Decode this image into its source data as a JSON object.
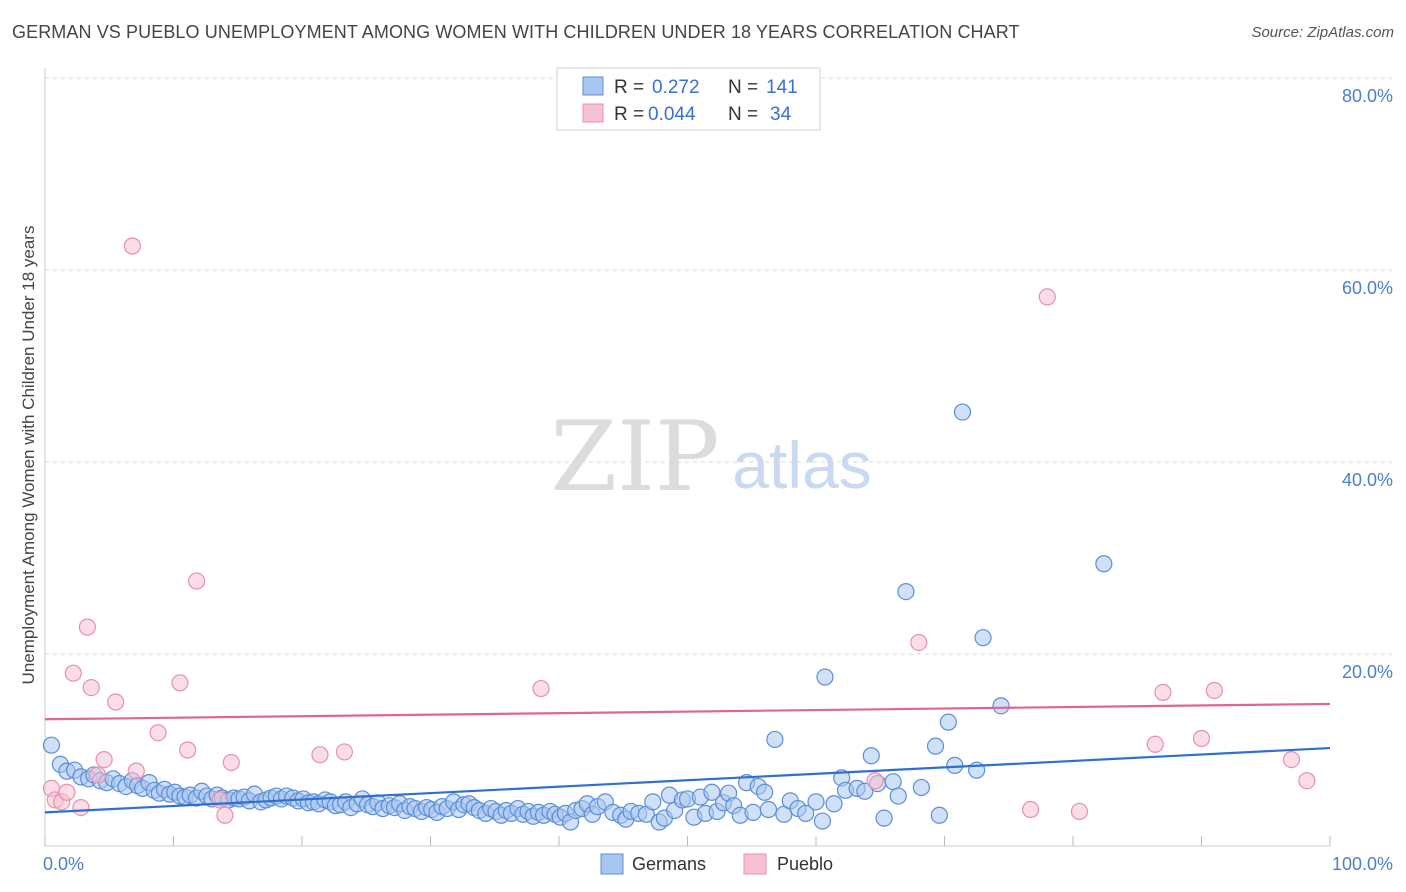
{
  "title": "GERMAN VS PUEBLO UNEMPLOYMENT AMONG WOMEN WITH CHILDREN UNDER 18 YEARS CORRELATION CHART",
  "source": "Source: ZipAtlas.com",
  "watermark": {
    "zip": "ZIP",
    "atlas": "atlas"
  },
  "colors": {
    "germans_fill": "#a9c6f1",
    "germans_stroke": "#5b8ed8",
    "germans_line": "#2f6fd0",
    "pueblo_fill": "#f6c1d1",
    "pueblo_stroke": "#e890ab",
    "pueblo_line": "#e06690",
    "grid": "#d8d8d8",
    "tick_text": "#4a7fcf"
  },
  "legend": {
    "rows": [
      {
        "series": "germans",
        "r_label": "R =",
        "r_value": "0.272",
        "n_label": "N =",
        "n_value": "141"
      },
      {
        "series": "pueblo",
        "r_label": "R =",
        "r_value": "0.044",
        "n_label": "N =",
        "n_value": "34"
      }
    ]
  },
  "chart_data": {
    "type": "scatter",
    "title": "GERMAN VS PUEBLO UNEMPLOYMENT AMONG WOMEN WITH CHILDREN UNDER 18 YEARS CORRELATION CHART",
    "xlabel": "",
    "ylabel": "Unemployment Among Women with Children Under 18 years",
    "xlim": [
      0,
      100
    ],
    "ylim": [
      0,
      80
    ],
    "x_tick_labels": [
      {
        "value": 0,
        "label": "0.0%"
      },
      {
        "value": 100,
        "label": "100.0%"
      }
    ],
    "y_tick_labels": [
      {
        "value": 20,
        "label": "20.0%"
      },
      {
        "value": 40,
        "label": "40.0%"
      },
      {
        "value": 60,
        "label": "60.0%"
      },
      {
        "value": 80,
        "label": "80.0%"
      }
    ],
    "grid": true,
    "legend_position": "top-center",
    "series": [
      {
        "name": "Germans",
        "key": "germans",
        "trend": {
          "x": [
            0,
            100
          ],
          "y": [
            3.5,
            10.2
          ]
        },
        "points": [
          [
            0.5,
            10.5
          ],
          [
            1.2,
            8.5
          ],
          [
            1.7,
            7.8
          ],
          [
            2.3,
            7.9
          ],
          [
            2.8,
            7.2
          ],
          [
            3.4,
            7.0
          ],
          [
            3.8,
            7.4
          ],
          [
            4.3,
            6.8
          ],
          [
            4.8,
            6.6
          ],
          [
            5.3,
            7.0
          ],
          [
            5.8,
            6.5
          ],
          [
            6.3,
            6.2
          ],
          [
            6.8,
            6.8
          ],
          [
            7.2,
            6.3
          ],
          [
            7.6,
            6.0
          ],
          [
            8.1,
            6.6
          ],
          [
            8.5,
            5.8
          ],
          [
            8.9,
            5.5
          ],
          [
            9.3,
            5.9
          ],
          [
            9.7,
            5.4
          ],
          [
            10.1,
            5.6
          ],
          [
            10.5,
            5.2
          ],
          [
            10.9,
            5.1
          ],
          [
            11.3,
            5.3
          ],
          [
            11.8,
            5.0
          ],
          [
            12.2,
            5.7
          ],
          [
            12.6,
            5.2
          ],
          [
            13.0,
            4.9
          ],
          [
            13.4,
            5.3
          ],
          [
            13.8,
            5.0
          ],
          [
            14.3,
            4.8
          ],
          [
            14.7,
            5.0
          ],
          [
            15.1,
            4.9
          ],
          [
            15.5,
            5.1
          ],
          [
            15.9,
            4.7
          ],
          [
            16.3,
            5.4
          ],
          [
            16.8,
            4.6
          ],
          [
            17.2,
            4.8
          ],
          [
            17.6,
            5.0
          ],
          [
            18.0,
            5.2
          ],
          [
            18.4,
            4.9
          ],
          [
            18.8,
            5.2
          ],
          [
            19.3,
            5.0
          ],
          [
            19.7,
            4.7
          ],
          [
            20.1,
            4.9
          ],
          [
            20.5,
            4.5
          ],
          [
            20.9,
            4.6
          ],
          [
            21.3,
            4.4
          ],
          [
            21.8,
            4.8
          ],
          [
            22.2,
            4.6
          ],
          [
            22.6,
            4.2
          ],
          [
            23.0,
            4.3
          ],
          [
            23.4,
            4.6
          ],
          [
            23.8,
            4.0
          ],
          [
            24.3,
            4.4
          ],
          [
            24.7,
            4.9
          ],
          [
            25.1,
            4.3
          ],
          [
            25.5,
            4.1
          ],
          [
            25.9,
            4.5
          ],
          [
            26.3,
            3.9
          ],
          [
            26.8,
            4.2
          ],
          [
            27.2,
            4.0
          ],
          [
            27.6,
            4.4
          ],
          [
            28.0,
            3.7
          ],
          [
            28.4,
            4.1
          ],
          [
            28.8,
            3.9
          ],
          [
            29.3,
            3.6
          ],
          [
            29.7,
            4.0
          ],
          [
            30.1,
            3.8
          ],
          [
            30.5,
            3.5
          ],
          [
            30.9,
            4.1
          ],
          [
            31.3,
            3.9
          ],
          [
            31.8,
            4.6
          ],
          [
            32.2,
            3.8
          ],
          [
            32.6,
            4.3
          ],
          [
            33.0,
            4.4
          ],
          [
            33.4,
            4.0
          ],
          [
            33.8,
            3.7
          ],
          [
            34.3,
            3.4
          ],
          [
            34.7,
            3.9
          ],
          [
            35.1,
            3.6
          ],
          [
            35.5,
            3.2
          ],
          [
            35.9,
            3.7
          ],
          [
            36.3,
            3.4
          ],
          [
            36.8,
            3.9
          ],
          [
            37.2,
            3.3
          ],
          [
            37.6,
            3.6
          ],
          [
            38.0,
            3.1
          ],
          [
            38.4,
            3.5
          ],
          [
            38.8,
            3.2
          ],
          [
            39.3,
            3.6
          ],
          [
            39.7,
            3.3
          ],
          [
            40.1,
            3.0
          ],
          [
            40.5,
            3.4
          ],
          [
            40.9,
            2.5
          ],
          [
            41.3,
            3.7
          ],
          [
            41.8,
            3.9
          ],
          [
            42.2,
            4.4
          ],
          [
            42.6,
            3.3
          ],
          [
            43.0,
            4.1
          ],
          [
            43.6,
            4.6
          ],
          [
            44.2,
            3.5
          ],
          [
            44.8,
            3.2
          ],
          [
            45.2,
            2.8
          ],
          [
            45.6,
            3.6
          ],
          [
            46.2,
            3.4
          ],
          [
            46.8,
            3.3
          ],
          [
            47.3,
            4.6
          ],
          [
            47.8,
            2.5
          ],
          [
            48.2,
            2.9
          ],
          [
            48.6,
            5.3
          ],
          [
            49.0,
            3.7
          ],
          [
            49.6,
            4.8
          ],
          [
            50.0,
            4.9
          ],
          [
            50.5,
            3.0
          ],
          [
            51.0,
            5.1
          ],
          [
            51.4,
            3.4
          ],
          [
            51.9,
            5.6
          ],
          [
            52.3,
            3.6
          ],
          [
            52.8,
            4.5
          ],
          [
            53.2,
            5.5
          ],
          [
            53.6,
            4.2
          ],
          [
            54.1,
            3.2
          ],
          [
            54.6,
            6.6
          ],
          [
            55.1,
            3.5
          ],
          [
            55.5,
            6.2
          ],
          [
            56.0,
            5.6
          ],
          [
            56.3,
            3.8
          ],
          [
            56.8,
            11.1
          ],
          [
            57.5,
            3.3
          ],
          [
            58.0,
            4.7
          ],
          [
            58.6,
            3.9
          ],
          [
            59.2,
            3.4
          ],
          [
            60.0,
            4.6
          ],
          [
            60.5,
            2.6
          ],
          [
            60.7,
            17.6
          ],
          [
            61.4,
            4.4
          ],
          [
            62.0,
            7.1
          ],
          [
            62.3,
            5.8
          ],
          [
            63.2,
            6.0
          ],
          [
            63.8,
            5.7
          ],
          [
            64.3,
            9.4
          ],
          [
            64.8,
            6.5
          ],
          [
            65.3,
            2.9
          ],
          [
            66.0,
            6.7
          ],
          [
            66.4,
            5.2
          ],
          [
            67.0,
            26.5
          ],
          [
            68.2,
            6.1
          ],
          [
            69.3,
            10.4
          ],
          [
            69.6,
            3.2
          ],
          [
            70.3,
            12.9
          ],
          [
            70.8,
            8.4
          ],
          [
            71.4,
            45.2
          ],
          [
            72.5,
            7.9
          ],
          [
            73.0,
            21.7
          ],
          [
            74.4,
            14.6
          ],
          [
            82.4,
            29.4
          ]
        ]
      },
      {
        "name": "Pueblo",
        "key": "pueblo",
        "trend": {
          "x": [
            0,
            100
          ],
          "y": [
            13.2,
            14.8
          ]
        },
        "points": [
          [
            0.5,
            6.0
          ],
          [
            0.8,
            4.8
          ],
          [
            1.3,
            4.6
          ],
          [
            1.7,
            5.6
          ],
          [
            2.2,
            18.0
          ],
          [
            2.8,
            4.0
          ],
          [
            3.3,
            22.8
          ],
          [
            3.6,
            16.5
          ],
          [
            4.1,
            7.4
          ],
          [
            4.6,
            9.0
          ],
          [
            5.5,
            15.0
          ],
          [
            6.8,
            62.5
          ],
          [
            7.1,
            7.8
          ],
          [
            8.8,
            11.8
          ],
          [
            10.5,
            17.0
          ],
          [
            11.1,
            10.0
          ],
          [
            11.8,
            27.6
          ],
          [
            13.6,
            4.8
          ],
          [
            14.0,
            3.2
          ],
          [
            14.5,
            8.7
          ],
          [
            21.4,
            9.5
          ],
          [
            23.3,
            9.8
          ],
          [
            38.6,
            16.4
          ],
          [
            64.6,
            6.8
          ],
          [
            68.0,
            21.2
          ],
          [
            76.7,
            3.8
          ],
          [
            78.0,
            57.2
          ],
          [
            80.5,
            3.6
          ],
          [
            86.4,
            10.6
          ],
          [
            87.0,
            16.0
          ],
          [
            90.0,
            11.2
          ],
          [
            91.0,
            16.2
          ],
          [
            97.0,
            9.0
          ],
          [
            98.2,
            6.8
          ]
        ]
      }
    ]
  },
  "bottom_legend": [
    {
      "series": "germans",
      "label": "Germans"
    },
    {
      "series": "pueblo",
      "label": "Pueblo"
    }
  ]
}
